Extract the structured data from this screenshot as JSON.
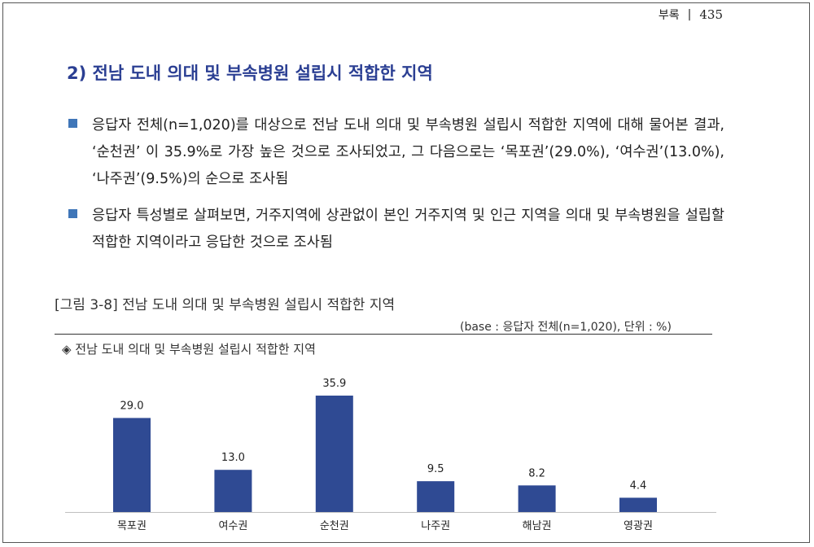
{
  "header": {
    "section": "부록",
    "separator": "|",
    "page_number": "435"
  },
  "section_title": "2) 전남 도내 의대 및 부속병원 설립시 적합한 지역",
  "bullets": [
    "응답자 전체(n=1,020)를 대상으로 전남 도내 의대 및 부속병원 설립시 적합한 지역에 대해 물어본 결과, ‘순천권’ 이 35.9%로 가장 높은 것으로 조사되었고, 그 다음으로는 ‘목포권’(29.0%), ‘여수권’(13.0%), ‘나주권’(9.5%)의 순으로 조사됨",
    "응답자 특성별로 살펴보면, 거주지역에 상관없이 본인 거주지역 및 인근 지역을 의대 및 부속병원을 설립할 적합한 지역이라고 응답한 것으로 조사됨"
  ],
  "figure": {
    "caption": "[그림 3-8] 전남 도내 의대 및 부속병원 설립시 적합한 지역",
    "base_note": "(base : 응답자 전체(n=1,020), 단위 : %)",
    "subtitle": "◈ 전남 도내 의대 및 부속병원 설립시 적합한 지역"
  },
  "chart_data": {
    "type": "bar",
    "categories": [
      "목포권",
      "여수권",
      "순천권",
      "나주권",
      "해남권",
      "영광권"
    ],
    "values": [
      29.0,
      13.0,
      35.9,
      9.5,
      8.2,
      4.4
    ],
    "value_labels": [
      "29.0",
      "13.0",
      "35.9",
      "9.5",
      "8.2",
      "4.4"
    ],
    "ylim": [
      0,
      35.9
    ],
    "grid": false,
    "bar_color": "#2f4a93"
  }
}
